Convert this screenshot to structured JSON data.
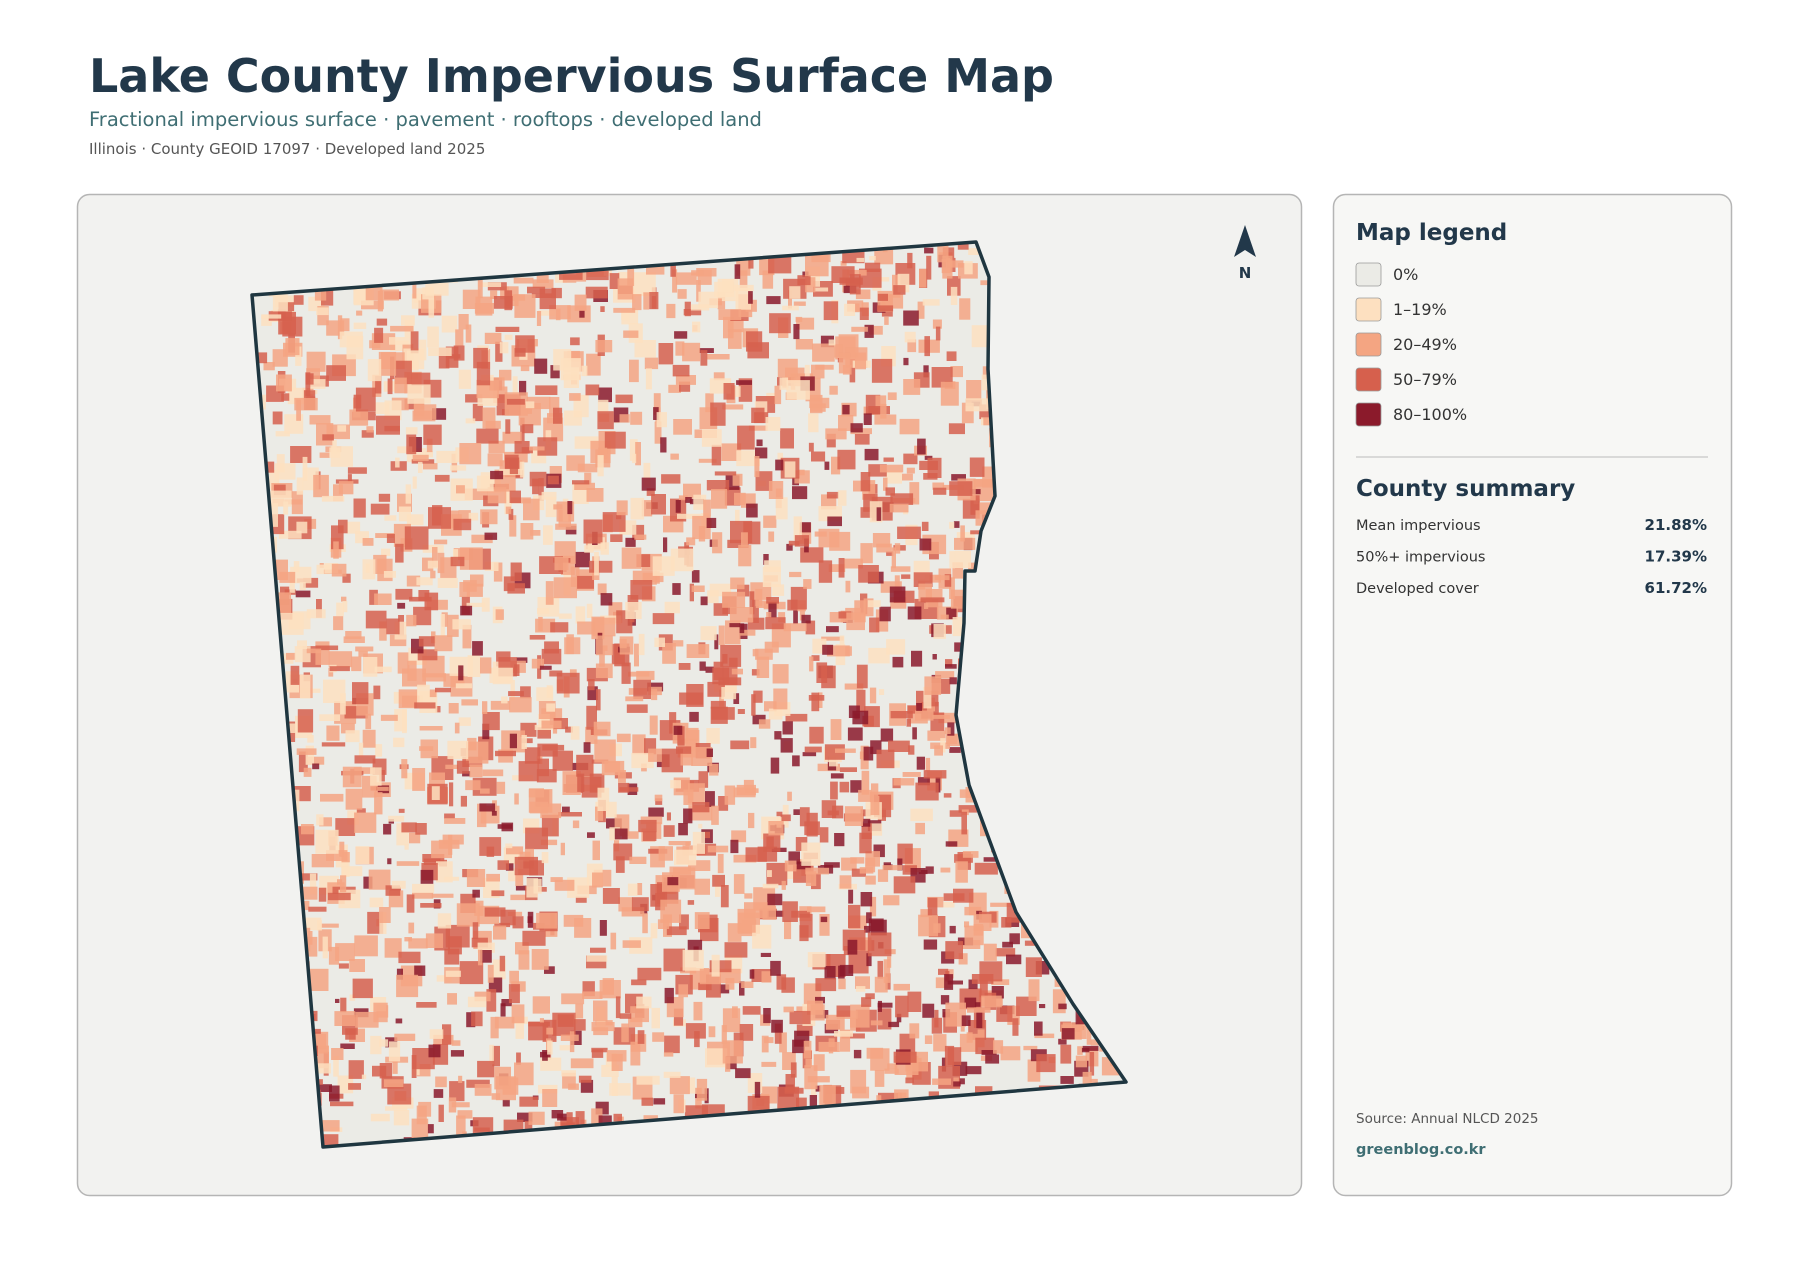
{
  "header": {
    "title": "Lake County Impervious Surface Map",
    "subtitle": "Fractional impervious surface · pavement · rooftops · developed land",
    "meta": "Illinois · County GEOID 17097 · Developed land 2025"
  },
  "map": {
    "north_label": "N"
  },
  "legend": {
    "title": "Map legend",
    "items": [
      {
        "label": "0%",
        "color": "#ebebe6"
      },
      {
        "label": "1–19%",
        "color": "#fde0c0"
      },
      {
        "label": "20–49%",
        "color": "#f4a582"
      },
      {
        "label": "50–79%",
        "color": "#d6604d"
      },
      {
        "label": "80–100%",
        "color": "#8b1a2b"
      }
    ]
  },
  "summary": {
    "title": "County summary",
    "rows": [
      {
        "label": "Mean impervious",
        "value": "21.88%"
      },
      {
        "label": "50%+ impervious",
        "value": "17.39%"
      },
      {
        "label": "Developed cover",
        "value": "61.72%"
      }
    ]
  },
  "footer": {
    "source": "Source: Annual NLCD 2025",
    "site": "greenblog.co.kr"
  }
}
